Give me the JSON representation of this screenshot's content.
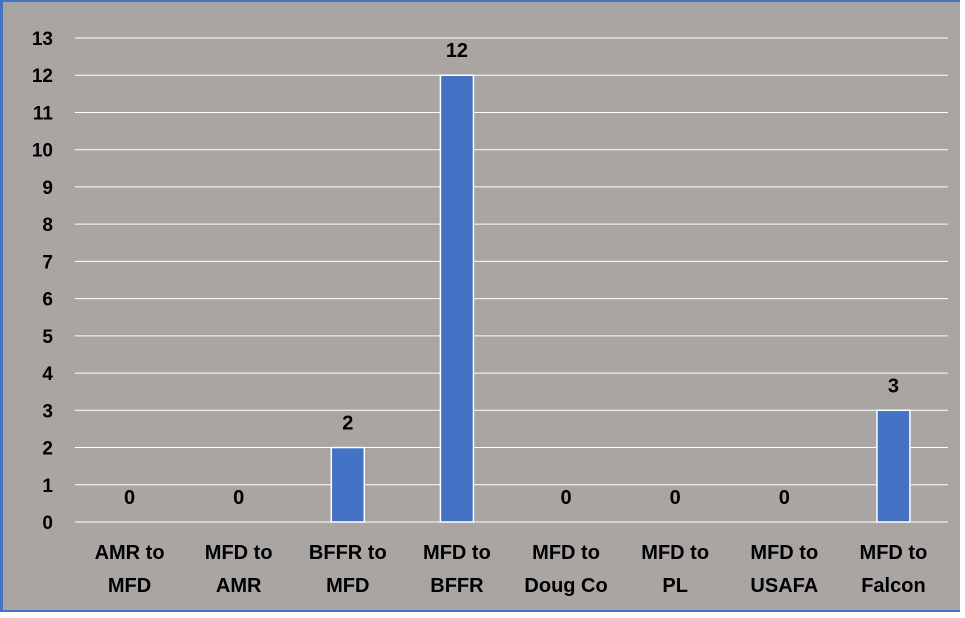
{
  "chart_data": {
    "type": "bar",
    "categories": [
      [
        "AMR to",
        "MFD"
      ],
      [
        "MFD to",
        "AMR"
      ],
      [
        "BFFR to",
        "MFD"
      ],
      [
        "MFD to",
        "BFFR"
      ],
      [
        "MFD to",
        "Doug Co"
      ],
      [
        "MFD to",
        "PL"
      ],
      [
        "MFD to",
        "USAFA"
      ],
      [
        "MFD to",
        "Falcon"
      ]
    ],
    "values": [
      0,
      0,
      2,
      12,
      0,
      0,
      0,
      3
    ],
    "data_labels": [
      "0",
      "0",
      "2",
      "12",
      "0",
      "0",
      "0",
      "3"
    ],
    "ylim": [
      0,
      13
    ],
    "yticks": [
      "0",
      "1",
      "2",
      "3",
      "4",
      "5",
      "6",
      "7",
      "8",
      "9",
      "10",
      "11",
      "12",
      "13"
    ],
    "grid": true,
    "colors": {
      "bar": "#4472c4",
      "bar_edge": "#ffffff",
      "background": "#a9a5a3",
      "gridline": "#ffffff",
      "frame": "#4472c4"
    }
  }
}
